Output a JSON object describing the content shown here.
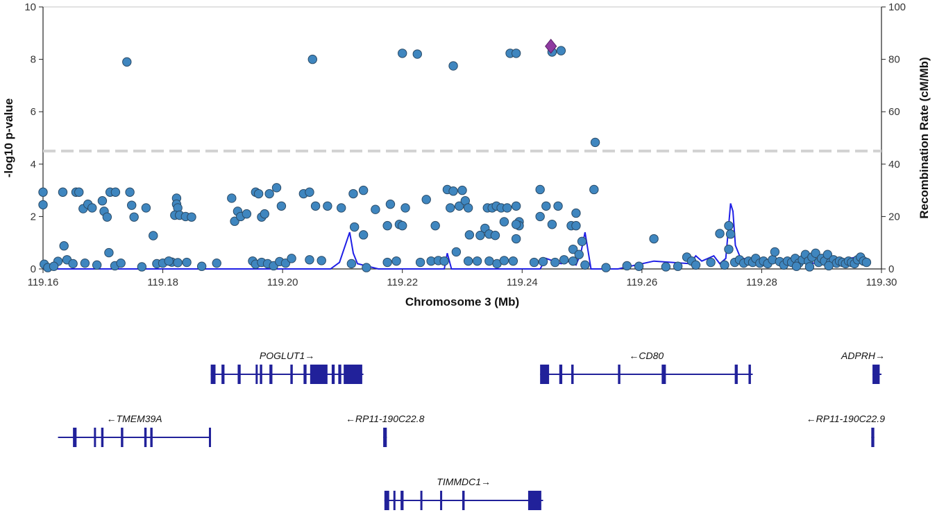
{
  "chart_data": {
    "type": "scatter",
    "title": "",
    "xlabel": "Chromosome 3 (Mb)",
    "ylabel": "-log10 p-value",
    "y2label": "Recombination Rate (cM/Mb)",
    "xlim": [
      119.16,
      119.3
    ],
    "ylim": [
      0,
      10
    ],
    "y2lim": [
      0,
      100
    ],
    "x_ticks": [
      "119.16",
      "119.18",
      "119.20",
      "119.22",
      "119.24",
      "119.26",
      "119.28",
      "119.30"
    ],
    "y_ticks": [
      "0",
      "2",
      "4",
      "6",
      "8",
      "10"
    ],
    "y2_ticks": [
      "0",
      "20",
      "40",
      "60",
      "80",
      "100"
    ],
    "significance_line": 4.5,
    "colors": {
      "point": "#3f86bf",
      "point_stroke": "#2a4a66",
      "lead": "#8e3aa0",
      "recombination": "#1f1fe6",
      "threshold": "#d2d2d2",
      "gene": "#21219a"
    },
    "lead_variant": {
      "x": 119.2448,
      "y": 8.5
    },
    "points": [
      [
        119.16,
        2.93
      ],
      [
        119.16,
        2.45
      ],
      [
        119.1602,
        0.18
      ],
      [
        119.1625,
        0.29
      ],
      [
        119.1633,
        2.93
      ],
      [
        119.1655,
        2.93
      ],
      [
        119.166,
        2.93
      ],
      [
        119.1667,
        2.3
      ],
      [
        119.1675,
        2.47
      ],
      [
        119.1682,
        2.33
      ],
      [
        119.1699,
        2.6
      ],
      [
        119.1702,
        2.2
      ],
      [
        119.1707,
        1.98
      ],
      [
        119.1712,
        2.93
      ],
      [
        119.1721,
        2.93
      ],
      [
        119.1745,
        2.93
      ],
      [
        119.1748,
        2.43
      ],
      [
        119.1752,
        1.98
      ],
      [
        119.1772,
        2.33
      ],
      [
        119.1784,
        1.27
      ],
      [
        119.1823,
        2.7
      ],
      [
        119.1823,
        2.47
      ],
      [
        119.1825,
        2.33
      ],
      [
        119.182,
        2.05
      ],
      [
        119.1828,
        2.05
      ],
      [
        119.1838,
        2.0
      ],
      [
        119.1848,
        1.98
      ],
      [
        119.1915,
        2.7
      ],
      [
        119.192,
        1.82
      ],
      [
        119.1925,
        2.2
      ],
      [
        119.193,
        2.0
      ],
      [
        119.194,
        2.1
      ],
      [
        119.1955,
        2.93
      ],
      [
        119.196,
        2.87
      ],
      [
        119.1965,
        1.98
      ],
      [
        119.197,
        2.1
      ],
      [
        119.1978,
        2.87
      ],
      [
        119.199,
        3.1
      ],
      [
        119.1998,
        2.4
      ],
      [
        119.2035,
        2.87
      ],
      [
        119.2045,
        2.93
      ],
      [
        119.2055,
        2.4
      ],
      [
        119.2075,
        2.4
      ],
      [
        119.2098,
        2.33
      ],
      [
        119.2118,
        2.87
      ],
      [
        119.2135,
        3.0
      ],
      [
        119.212,
        1.6
      ],
      [
        119.2135,
        1.3
      ],
      [
        119.2155,
        2.27
      ],
      [
        119.2175,
        1.65
      ],
      [
        119.218,
        2.47
      ],
      [
        119.2195,
        1.7
      ],
      [
        119.22,
        1.65
      ],
      [
        119.2205,
        2.33
      ],
      [
        119.224,
        2.65
      ],
      [
        119.2255,
        1.65
      ],
      [
        119.2275,
        3.03
      ],
      [
        119.228,
        2.33
      ],
      [
        119.2295,
        2.4
      ],
      [
        119.2285,
        2.97
      ],
      [
        119.23,
        3.0
      ],
      [
        119.2305,
        2.6
      ],
      [
        119.231,
        2.33
      ],
      [
        119.2312,
        1.3
      ],
      [
        119.2338,
        1.55
      ],
      [
        119.2342,
        2.33
      ],
      [
        119.235,
        2.33
      ],
      [
        119.2357,
        2.4
      ],
      [
        119.2365,
        2.33
      ],
      [
        119.233,
        1.28
      ],
      [
        119.2345,
        1.33
      ],
      [
        119.2355,
        1.28
      ],
      [
        119.237,
        1.8
      ],
      [
        119.2375,
        2.33
      ],
      [
        119.239,
        2.4
      ],
      [
        119.2395,
        1.8
      ],
      [
        119.2395,
        1.65
      ],
      [
        119.239,
        1.7
      ],
      [
        119.239,
        1.15
      ],
      [
        119.243,
        3.03
      ],
      [
        119.244,
        2.4
      ],
      [
        119.243,
        2.0
      ],
      [
        119.245,
        1.7
      ],
      [
        119.246,
        2.4
      ],
      [
        119.2482,
        1.65
      ],
      [
        119.249,
        2.13
      ],
      [
        119.249,
        1.65
      ],
      [
        119.25,
        1.05
      ],
      [
        119.2485,
        0.75
      ],
      [
        119.2495,
        0.55
      ],
      [
        119.252,
        3.03
      ],
      [
        119.262,
        1.15
      ],
      [
        119.273,
        1.35
      ],
      [
        119.2745,
        1.65
      ],
      [
        119.2748,
        1.33
      ],
      [
        119.2745,
        0.75
      ],
      [
        119.1815,
        0.26
      ],
      [
        119.1825,
        0.24
      ],
      [
        119.1635,
        0.88
      ],
      [
        119.171,
        0.62
      ],
      [
        119.174,
        7.9
      ],
      [
        119.205,
        8.0
      ],
      [
        119.22,
        8.23
      ],
      [
        119.2225,
        8.2
      ],
      [
        119.2285,
        7.75
      ],
      [
        119.238,
        8.23
      ],
      [
        119.239,
        8.23
      ],
      [
        119.245,
        8.28
      ],
      [
        119.2465,
        8.33
      ],
      [
        119.2522,
        4.83
      ],
      [
        119.1608,
        0.05
      ],
      [
        119.1618,
        0.1
      ],
      [
        119.164,
        0.35
      ],
      [
        119.165,
        0.2
      ],
      [
        119.167,
        0.22
      ],
      [
        119.169,
        0.15
      ],
      [
        119.172,
        0.12
      ],
      [
        119.173,
        0.22
      ],
      [
        119.1765,
        0.08
      ],
      [
        119.179,
        0.2
      ],
      [
        119.18,
        0.22
      ],
      [
        119.181,
        0.3
      ],
      [
        119.184,
        0.25
      ],
      [
        119.1865,
        0.1
      ],
      [
        119.189,
        0.22
      ],
      [
        119.195,
        0.3
      ],
      [
        119.1955,
        0.18
      ],
      [
        119.1965,
        0.25
      ],
      [
        119.1975,
        0.2
      ],
      [
        119.1985,
        0.12
      ],
      [
        119.1995,
        0.28
      ],
      [
        119.2005,
        0.22
      ],
      [
        119.2015,
        0.4
      ],
      [
        119.2045,
        0.35
      ],
      [
        119.2065,
        0.32
      ],
      [
        119.2115,
        0.2
      ],
      [
        119.214,
        0.05
      ],
      [
        119.2175,
        0.25
      ],
      [
        119.219,
        0.3
      ],
      [
        119.223,
        0.25
      ],
      [
        119.2248,
        0.3
      ],
      [
        119.226,
        0.32
      ],
      [
        119.227,
        0.3
      ],
      [
        119.229,
        0.65
      ],
      [
        119.231,
        0.3
      ],
      [
        119.2325,
        0.3
      ],
      [
        119.2345,
        0.3
      ],
      [
        119.2358,
        0.2
      ],
      [
        119.237,
        0.32
      ],
      [
        119.2385,
        0.3
      ],
      [
        119.242,
        0.25
      ],
      [
        119.2435,
        0.28
      ],
      [
        119.2455,
        0.25
      ],
      [
        119.247,
        0.35
      ],
      [
        119.2485,
        0.3
      ],
      [
        119.2505,
        0.15
      ],
      [
        119.254,
        0.05
      ],
      [
        119.2575,
        0.12
      ],
      [
        119.2595,
        0.1
      ],
      [
        119.264,
        0.08
      ],
      [
        119.266,
        0.1
      ],
      [
        119.2675,
        0.45
      ],
      [
        119.2683,
        0.3
      ],
      [
        119.269,
        0.15
      ],
      [
        119.2715,
        0.25
      ],
      [
        119.2738,
        0.15
      ],
      [
        119.2755,
        0.25
      ],
      [
        119.2763,
        0.35
      ],
      [
        119.277,
        0.22
      ],
      [
        119.2778,
        0.3
      ],
      [
        119.2785,
        0.25
      ],
      [
        119.279,
        0.4
      ],
      [
        119.2797,
        0.22
      ],
      [
        119.2803,
        0.3
      ],
      [
        119.281,
        0.2
      ],
      [
        119.2818,
        0.35
      ],
      [
        119.2822,
        0.65
      ],
      [
        119.283,
        0.28
      ],
      [
        119.2837,
        0.15
      ],
      [
        119.2843,
        0.3
      ],
      [
        119.285,
        0.25
      ],
      [
        119.2856,
        0.4
      ],
      [
        119.2862,
        0.22
      ],
      [
        119.2868,
        0.35
      ],
      [
        119.2873,
        0.55
      ],
      [
        119.2878,
        0.3
      ],
      [
        119.2884,
        0.45
      ],
      [
        119.289,
        0.6
      ],
      [
        119.2895,
        0.25
      ],
      [
        119.29,
        0.4
      ],
      [
        119.2905,
        0.3
      ],
      [
        119.291,
        0.55
      ],
      [
        119.2915,
        0.25
      ],
      [
        119.292,
        0.35
      ],
      [
        119.2925,
        0.22
      ],
      [
        119.293,
        0.3
      ],
      [
        119.2935,
        0.25
      ],
      [
        119.294,
        0.2
      ],
      [
        119.2945,
        0.3
      ],
      [
        119.295,
        0.25
      ],
      [
        119.2955,
        0.2
      ],
      [
        119.296,
        0.35
      ],
      [
        119.2965,
        0.45
      ],
      [
        119.297,
        0.3
      ],
      [
        119.2975,
        0.25
      ],
      [
        119.2858,
        0.1
      ],
      [
        119.288,
        0.08
      ],
      [
        119.2912,
        0.12
      ]
    ],
    "recombination": [
      [
        119.16,
        0
      ],
      [
        119.208,
        0
      ],
      [
        119.2095,
        0.25
      ],
      [
        119.2112,
        1.4
      ],
      [
        119.2118,
        0.6
      ],
      [
        119.2125,
        0.2
      ],
      [
        119.216,
        0
      ],
      [
        119.227,
        0
      ],
      [
        119.2275,
        0.6
      ],
      [
        119.2282,
        0
      ],
      [
        119.243,
        0
      ],
      [
        119.244,
        0.4
      ],
      [
        119.2465,
        0.2
      ],
      [
        119.248,
        0.3
      ],
      [
        119.249,
        0.15
      ],
      [
        119.2498,
        0.6
      ],
      [
        119.2505,
        1.4
      ],
      [
        119.2515,
        0
      ],
      [
        119.256,
        0
      ],
      [
        119.262,
        0.3
      ],
      [
        119.268,
        0.2
      ],
      [
        119.269,
        0.5
      ],
      [
        119.27,
        0.3
      ],
      [
        119.272,
        0.5
      ],
      [
        119.273,
        0.2
      ],
      [
        119.274,
        0.4
      ],
      [
        119.2748,
        2.5
      ],
      [
        119.2752,
        2.2
      ],
      [
        119.2756,
        0.9
      ],
      [
        119.2765,
        0.4
      ],
      [
        119.28,
        0.35
      ],
      [
        119.29,
        0.2
      ],
      [
        119.297,
        0.5
      ],
      [
        119.2975,
        0.25
      ]
    ]
  },
  "genes": [
    {
      "label": "POGLUT1→",
      "start": 119.188,
      "end": 119.2135,
      "exons": [
        [
          119.188,
          119.1888
        ],
        [
          119.1898,
          119.1903
        ],
        [
          119.1925,
          119.193
        ],
        [
          119.1955,
          119.1958
        ],
        [
          119.1962,
          119.1966
        ],
        [
          119.1978,
          119.1983
        ],
        [
          119.2013,
          119.2017
        ],
        [
          119.2035,
          119.204
        ],
        [
          119.2046,
          119.2075
        ],
        [
          119.2082,
          119.2087
        ],
        [
          119.2093,
          119.2098
        ],
        [
          119.2102,
          119.2133
        ]
      ]
    },
    {
      "label": "←CD80",
      "start": 119.243,
      "end": 119.2785,
      "exons": [
        [
          119.243,
          119.2445
        ],
        [
          119.2462,
          119.2467
        ],
        [
          119.2482,
          119.2486
        ],
        [
          119.256,
          119.2564
        ],
        [
          119.2633,
          119.264
        ],
        [
          119.2755,
          119.276
        ],
        [
          119.2778,
          119.2782
        ]
      ]
    },
    {
      "label": "ADPRH→",
      "start": 119.2985,
      "end": 119.3,
      "exons": [
        [
          119.2985,
          119.2997
        ]
      ]
    },
    {
      "label": "←TMEM39A",
      "start": 119.1625,
      "end": 119.188,
      "exons": [
        [
          119.165,
          119.1656
        ],
        [
          119.1685,
          119.1688
        ],
        [
          119.1697,
          119.1701
        ],
        [
          119.173,
          119.1734
        ],
        [
          119.1769,
          119.1773
        ],
        [
          119.1779,
          119.1783
        ],
        [
          119.1877,
          119.188
        ]
      ]
    },
    {
      "label": "←RP11-190C22.8",
      "start": 119.2168,
      "end": 119.2174,
      "exons": [
        [
          119.2168,
          119.2174
        ]
      ]
    },
    {
      "label": "←RP11-190C22.9",
      "start": 119.2983,
      "end": 119.2988,
      "exons": [
        [
          119.2983,
          119.2988
        ]
      ]
    },
    {
      "label": "TIMMDC1→",
      "start": 119.217,
      "end": 119.2435,
      "exons": [
        [
          119.217,
          119.2178
        ],
        [
          119.2185,
          119.2188
        ],
        [
          119.2197,
          119.2202
        ],
        [
          119.223,
          119.2233
        ],
        [
          119.2263,
          119.2266
        ],
        [
          119.23,
          119.2304
        ],
        [
          119.241,
          119.2432
        ]
      ]
    }
  ]
}
